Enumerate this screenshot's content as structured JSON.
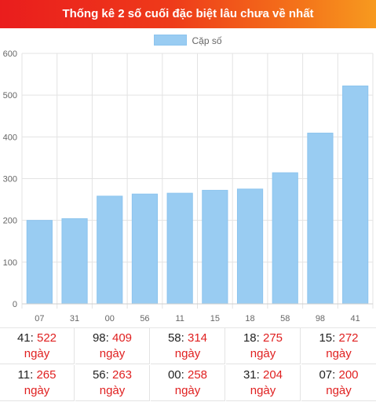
{
  "header": {
    "title": "Thống kê 2 số cuối đặc biệt lâu chưa về nhất"
  },
  "colors": {
    "bar": "#99ccf2",
    "bar_border": "#8cc4ee",
    "value_red": "#e02020"
  },
  "chart_data": {
    "type": "bar",
    "categories": [
      "07",
      "31",
      "00",
      "56",
      "11",
      "15",
      "18",
      "58",
      "98",
      "41"
    ],
    "series": [
      {
        "name": "Cặp số",
        "values": [
          200,
          204,
          258,
          263,
          265,
          272,
          275,
          314,
          409,
          522
        ]
      }
    ],
    "ylim": [
      0,
      600
    ],
    "y_ticks": [
      "0",
      "100",
      "200",
      "300",
      "400",
      "500",
      "600"
    ],
    "title": "",
    "xlabel": "",
    "ylabel": "",
    "grid": true,
    "legend": "top-center"
  },
  "stats": [
    {
      "num": "41",
      "days": "522",
      "unit": "ngày"
    },
    {
      "num": "98",
      "days": "409",
      "unit": "ngày"
    },
    {
      "num": "58",
      "days": "314",
      "unit": "ngày"
    },
    {
      "num": "18",
      "days": "275",
      "unit": "ngày"
    },
    {
      "num": "15",
      "days": "272",
      "unit": "ngày"
    },
    {
      "num": "11",
      "days": "265",
      "unit": "ngày"
    },
    {
      "num": "56",
      "days": "263",
      "unit": "ngày"
    },
    {
      "num": "00",
      "days": "258",
      "unit": "ngày"
    },
    {
      "num": "31",
      "days": "204",
      "unit": "ngày"
    },
    {
      "num": "07",
      "days": "200",
      "unit": "ngày"
    }
  ]
}
